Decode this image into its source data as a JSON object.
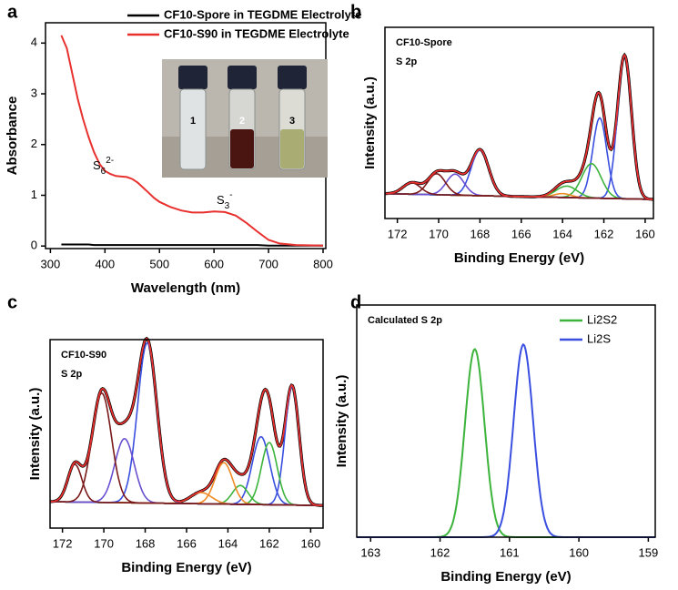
{
  "chart_data": [
    {
      "type": "line",
      "panel": "a",
      "xlabel": "Wavelength (nm)",
      "ylabel": "Absorbance",
      "xlim": [
        291,
        805
      ],
      "xticks": [
        300,
        400,
        500,
        600,
        700,
        800
      ],
      "ylim": [
        -0.05,
        4.4
      ],
      "yticks": [
        0,
        1,
        2,
        3,
        4
      ],
      "legend": "upper right",
      "x": [
        320,
        330,
        340,
        350,
        360,
        370,
        380,
        390,
        400,
        410,
        420,
        430,
        440,
        450,
        460,
        470,
        480,
        490,
        500,
        520,
        540,
        560,
        580,
        600,
        620,
        640,
        660,
        680,
        700,
        720,
        750,
        800
      ],
      "series": [
        {
          "name": "CF10-Spore in TEGDME Electrolyte",
          "color": "#000000",
          "values": [
            0.03,
            0.03,
            0.03,
            0.03,
            0.03,
            0.03,
            0.02,
            0.02,
            0.02,
            0.02,
            0.02,
            0.02,
            0.02,
            0.02,
            0.02,
            0.02,
            0.02,
            0.02,
            0.02,
            0.02,
            0.02,
            0.02,
            0.02,
            0.02,
            0.02,
            0.02,
            0.02,
            0.02,
            0.01,
            0.01,
            0.01,
            0.01
          ]
        },
        {
          "name": "CF10-S90 in TEGDME Electrolyte",
          "color": "#e8312f",
          "values": [
            4.15,
            3.9,
            3.4,
            2.9,
            2.5,
            2.15,
            1.85,
            1.62,
            1.48,
            1.42,
            1.38,
            1.37,
            1.36,
            1.32,
            1.25,
            1.15,
            1.05,
            0.95,
            0.87,
            0.77,
            0.7,
            0.66,
            0.66,
            0.68,
            0.67,
            0.6,
            0.45,
            0.28,
            0.12,
            0.05,
            0.02,
            0.01
          ]
        }
      ],
      "annotations": [
        {
          "text": "S",
          "sub": "6",
          "sup": "2-"
        },
        {
          "text": "S",
          "sub": "3",
          "sup": "-"
        }
      ],
      "inset_labels": [
        "1",
        "2",
        "3"
      ]
    },
    {
      "type": "xps",
      "panel": "b",
      "xlabel": "Binding Energy (eV)",
      "ylabel": "Intensity (a.u.)",
      "labels": [
        "CF10-Spore",
        "S 2p"
      ],
      "xlim": [
        172.6,
        159.6
      ],
      "xticks": [
        172,
        170,
        168,
        166,
        164,
        162,
        160
      ],
      "ylim": [
        0,
        1
      ],
      "baseline": [
        0.13,
        0.1
      ],
      "baseline_color": "#f08a24",
      "envelope_color": "#e8312f",
      "measured_color": "#000000",
      "components": [
        {
          "center": 161.0,
          "height": 0.75,
          "fwhm": 0.8,
          "color": "#3a4fe0"
        },
        {
          "center": 162.2,
          "height": 0.42,
          "fwhm": 0.8,
          "color": "#3a4fe0"
        },
        {
          "center": 162.6,
          "height": 0.18,
          "fwhm": 1.1,
          "color": "#3cb43c"
        },
        {
          "center": 163.8,
          "height": 0.06,
          "fwhm": 1.2,
          "color": "#3cb43c"
        },
        {
          "center": 164.0,
          "height": 0.02,
          "fwhm": 1.0,
          "color": "#f08a24"
        },
        {
          "center": 168.0,
          "height": 0.24,
          "fwhm": 1.0,
          "color": "#3a4fe0"
        },
        {
          "center": 169.2,
          "height": 0.11,
          "fwhm": 1.0,
          "color": "#6a4fd0"
        },
        {
          "center": 170.1,
          "height": 0.11,
          "fwhm": 1.0,
          "color": "#7a1a1a"
        },
        {
          "center": 171.3,
          "height": 0.06,
          "fwhm": 1.0,
          "color": "#7a1a1a"
        }
      ]
    },
    {
      "type": "xps",
      "panel": "c",
      "xlabel": "Binding Energy (eV)",
      "ylabel": "Intensity (a.u.)",
      "labels": [
        "CF10-S90",
        "S 2p"
      ],
      "xlim": [
        172.6,
        159.4
      ],
      "xticks": [
        172,
        170,
        168,
        166,
        164,
        162,
        160
      ],
      "ylim": [
        0,
        1
      ],
      "baseline": [
        0.14,
        0.12
      ],
      "baseline_color": "#f08a24",
      "envelope_color": "#e8312f",
      "measured_color": "#000000",
      "components": [
        {
          "center": 160.9,
          "height": 0.63,
          "fwhm": 0.8,
          "color": "#3a4fe0"
        },
        {
          "center": 162.4,
          "height": 0.36,
          "fwhm": 1.0,
          "color": "#3a4fe0"
        },
        {
          "center": 162.0,
          "height": 0.33,
          "fwhm": 0.9,
          "color": "#3cb43c"
        },
        {
          "center": 163.4,
          "height": 0.1,
          "fwhm": 0.9,
          "color": "#3cb43c"
        },
        {
          "center": 164.2,
          "height": 0.22,
          "fwhm": 1.0,
          "color": "#f08a24"
        },
        {
          "center": 165.3,
          "height": 0.06,
          "fwhm": 1.2,
          "color": "#f08a24"
        },
        {
          "center": 167.9,
          "height": 0.85,
          "fwhm": 1.1,
          "color": "#3a4fe0"
        },
        {
          "center": 169.0,
          "height": 0.34,
          "fwhm": 1.1,
          "color": "#6a4fd0"
        },
        {
          "center": 170.1,
          "height": 0.58,
          "fwhm": 1.1,
          "color": "#7a1a1a"
        },
        {
          "center": 171.4,
          "height": 0.2,
          "fwhm": 0.8,
          "color": "#7a1a1a"
        }
      ]
    },
    {
      "type": "xps",
      "panel": "d",
      "xlabel": "Binding Energy (eV)",
      "ylabel": "Intensity (a.u.)",
      "labels": [
        "Calculated S 2p"
      ],
      "xlim": [
        163.2,
        158.9
      ],
      "xticks": [
        163,
        162,
        161,
        160,
        159
      ],
      "ylim": [
        0,
        1
      ],
      "series": [
        {
          "name": "Li2S2",
          "color": "#3cb43c",
          "center": 161.5,
          "height": 0.81,
          "fwhm": 0.33
        },
        {
          "name": "Li2S",
          "color": "#3a4fe0",
          "center": 160.8,
          "height": 0.83,
          "fwhm": 0.33
        }
      ]
    }
  ]
}
